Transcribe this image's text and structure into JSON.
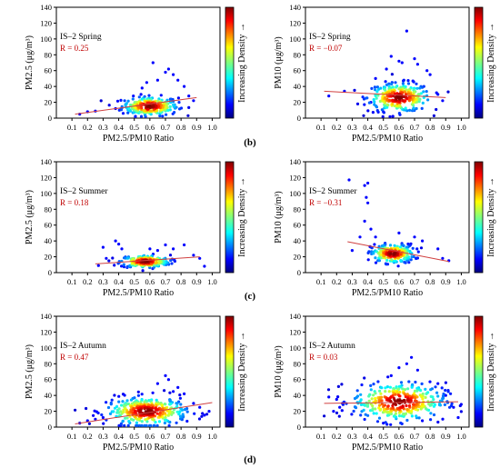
{
  "panel_labels": [
    "(b)",
    "(c)",
    "(d)"
  ],
  "colorbar_label": "Increasing Density →",
  "chart_data": [
    {
      "type": "scatter",
      "row": 0,
      "col": 0,
      "season_label": "IS–2 Spring",
      "r_label": "R = 0.25",
      "xlabel": "PM2.5/PM10 Ratio",
      "ylabel": "PM2.5 (μg/m³)",
      "xlim": [
        0,
        1.05
      ],
      "ylim": [
        0,
        140
      ],
      "x_ticks": [
        "0.1",
        "0.2",
        "0.3",
        "0.4",
        "0.5",
        "0.6",
        "0.7",
        "0.8",
        "0.9",
        "1.0"
      ],
      "y_ticks": [
        "0",
        "20",
        "40",
        "60",
        "80",
        "100",
        "120",
        "140"
      ],
      "trend": {
        "x": [
          0.12,
          0.9
        ],
        "y": [
          5,
          26
        ]
      },
      "cluster": {
        "cx": 0.6,
        "cy": 15,
        "sx": 0.09,
        "sy": 6
      },
      "outliers": [
        [
          0.15,
          5
        ],
        [
          0.2,
          8
        ],
        [
          0.25,
          9
        ],
        [
          0.38,
          12
        ],
        [
          0.62,
          70
        ],
        [
          0.7,
          58
        ],
        [
          0.75,
          55
        ],
        [
          0.78,
          48
        ],
        [
          0.82,
          40
        ],
        [
          0.58,
          45
        ],
        [
          0.65,
          48
        ],
        [
          0.72,
          62
        ],
        [
          0.85,
          28
        ],
        [
          0.88,
          22
        ],
        [
          0.47,
          10
        ],
        [
          0.55,
          38
        ]
      ],
      "n_points": 260
    },
    {
      "type": "scatter",
      "row": 0,
      "col": 1,
      "season_label": "IS–2 Spring",
      "r_label": "R = −0.07",
      "xlabel": "PM2.5/PM10 Ratio",
      "ylabel": "PM10 (μg/m³)",
      "xlim": [
        0,
        1.05
      ],
      "ylim": [
        0,
        140
      ],
      "x_ticks": [
        "0.1",
        "0.2",
        "0.3",
        "0.4",
        "0.5",
        "0.6",
        "0.7",
        "0.8",
        "0.9",
        "1.0"
      ],
      "y_ticks": [
        "0",
        "20",
        "40",
        "60",
        "80",
        "100",
        "120",
        "140"
      ],
      "trend": {
        "x": [
          0.12,
          0.9
        ],
        "y": [
          34,
          26
        ]
      },
      "cluster": {
        "cx": 0.6,
        "cy": 26,
        "sx": 0.1,
        "sy": 9
      },
      "outliers": [
        [
          0.15,
          28
        ],
        [
          0.25,
          34
        ],
        [
          0.65,
          110
        ],
        [
          0.55,
          78
        ],
        [
          0.62,
          70
        ],
        [
          0.7,
          75
        ],
        [
          0.72,
          68
        ],
        [
          0.78,
          60
        ],
        [
          0.8,
          55
        ],
        [
          0.52,
          62
        ],
        [
          0.45,
          50
        ],
        [
          0.85,
          30
        ],
        [
          0.88,
          22
        ],
        [
          0.42,
          20
        ],
        [
          0.5,
          8
        ],
        [
          0.6,
          72
        ]
      ],
      "n_points": 280
    },
    {
      "type": "scatter",
      "row": 1,
      "col": 0,
      "season_label": "IS–2 Summer",
      "r_label": "R = 0.18",
      "xlabel": "PM2.5/PM10 Ratio",
      "ylabel": "PM2.5 (μg/m³)",
      "xlim": [
        0,
        1.05
      ],
      "ylim": [
        0,
        140
      ],
      "x_ticks": [
        "0.1",
        "0.2",
        "0.3",
        "0.4",
        "0.5",
        "0.6",
        "0.7",
        "0.8",
        "0.9",
        "1.0"
      ],
      "y_ticks": [
        "0",
        "20",
        "40",
        "60",
        "80",
        "100",
        "120",
        "140"
      ],
      "trend": {
        "x": [
          0.25,
          0.92
        ],
        "y": [
          11,
          20
        ]
      },
      "cluster": {
        "cx": 0.57,
        "cy": 14,
        "sx": 0.08,
        "sy": 4
      },
      "outliers": [
        [
          0.3,
          32
        ],
        [
          0.38,
          40
        ],
        [
          0.4,
          36
        ],
        [
          0.42,
          30
        ],
        [
          0.27,
          9
        ],
        [
          0.32,
          18
        ],
        [
          0.7,
          35
        ],
        [
          0.75,
          30
        ],
        [
          0.82,
          35
        ],
        [
          0.88,
          22
        ],
        [
          0.92,
          18
        ],
        [
          0.95,
          8
        ],
        [
          0.6,
          30
        ],
        [
          0.65,
          28
        ]
      ],
      "n_points": 220
    },
    {
      "type": "scatter",
      "row": 1,
      "col": 1,
      "season_label": "IS–2 Summer",
      "r_label": "R = −0.31",
      "xlabel": "PM2.5/PM10 Ratio",
      "ylabel": "PM10 (μg/m³)",
      "xlim": [
        0,
        1.05
      ],
      "ylim": [
        0,
        140
      ],
      "x_ticks": [
        "0.1",
        "0.2",
        "0.3",
        "0.4",
        "0.5",
        "0.6",
        "0.7",
        "0.8",
        "0.9",
        "1.0"
      ],
      "y_ticks": [
        "0",
        "20",
        "40",
        "60",
        "80",
        "100",
        "120",
        "140"
      ],
      "trend": {
        "x": [
          0.27,
          0.92
        ],
        "y": [
          39,
          14
        ]
      },
      "cluster": {
        "cx": 0.56,
        "cy": 24,
        "sx": 0.07,
        "sy": 6
      },
      "outliers": [
        [
          0.28,
          117
        ],
        [
          0.38,
          110
        ],
        [
          0.4,
          113
        ],
        [
          0.39,
          95
        ],
        [
          0.4,
          88
        ],
        [
          0.38,
          65
        ],
        [
          0.42,
          55
        ],
        [
          0.35,
          45
        ],
        [
          0.3,
          28
        ],
        [
          0.45,
          45
        ],
        [
          0.6,
          50
        ],
        [
          0.7,
          45
        ],
        [
          0.75,
          40
        ],
        [
          0.85,
          30
        ],
        [
          0.88,
          18
        ],
        [
          0.92,
          15
        ]
      ],
      "n_points": 220
    },
    {
      "type": "scatter",
      "row": 2,
      "col": 0,
      "season_label": "IS–2 Autumn",
      "r_label": "R = 0.47",
      "xlabel": "PM2.5/PM10 Ratio",
      "ylabel": "PM2.5 (μg/m³)",
      "xlim": [
        0,
        1.05
      ],
      "ylim": [
        0,
        140
      ],
      "x_ticks": [
        "0.1",
        "0.2",
        "0.3",
        "0.4",
        "0.5",
        "0.6",
        "0.7",
        "0.8",
        "0.9",
        "1.0"
      ],
      "y_ticks": [
        "0",
        "20",
        "40",
        "60",
        "80",
        "100",
        "120",
        "140"
      ],
      "trend": {
        "x": [
          0.12,
          1.0
        ],
        "y": [
          4,
          31
        ]
      },
      "cluster": {
        "cx": 0.58,
        "cy": 20,
        "sx": 0.13,
        "sy": 9
      },
      "outliers": [
        [
          0.15,
          5
        ],
        [
          0.2,
          8
        ],
        [
          0.25,
          10
        ],
        [
          0.3,
          12
        ],
        [
          0.7,
          65
        ],
        [
          0.72,
          60
        ],
        [
          0.65,
          55
        ],
        [
          0.78,
          50
        ],
        [
          0.82,
          42
        ],
        [
          0.88,
          30
        ],
        [
          0.92,
          25
        ],
        [
          0.95,
          15
        ],
        [
          0.98,
          20
        ],
        [
          0.75,
          45
        ]
      ],
      "n_points": 360
    },
    {
      "type": "scatter",
      "row": 2,
      "col": 1,
      "season_label": "IS–2 Autumn",
      "r_label": "R = 0.03",
      "xlabel": "PM2.5/PM10 Ratio",
      "ylabel": "PM10 (μg/m³)",
      "xlim": [
        0,
        1.05
      ],
      "ylim": [
        0,
        140
      ],
      "x_ticks": [
        "0.1",
        "0.2",
        "0.3",
        "0.4",
        "0.5",
        "0.6",
        "0.7",
        "0.8",
        "0.9",
        "1.0"
      ],
      "y_ticks": [
        "0",
        "20",
        "40",
        "60",
        "80",
        "100",
        "120",
        "140"
      ],
      "trend": {
        "x": [
          0.12,
          0.98
        ],
        "y": [
          30,
          32
        ]
      },
      "cluster": {
        "cx": 0.6,
        "cy": 32,
        "sx": 0.15,
        "sy": 12
      },
      "outliers": [
        [
          0.15,
          38
        ],
        [
          0.2,
          35
        ],
        [
          0.22,
          25
        ],
        [
          0.18,
          20
        ],
        [
          0.68,
          88
        ],
        [
          0.65,
          80
        ],
        [
          0.6,
          75
        ],
        [
          0.72,
          72
        ],
        [
          0.55,
          65
        ],
        [
          0.85,
          55
        ],
        [
          0.9,
          40
        ],
        [
          0.95,
          25
        ],
        [
          0.98,
          12
        ],
        [
          0.75,
          8
        ],
        [
          0.5,
          5
        ]
      ],
      "n_points": 360
    }
  ]
}
